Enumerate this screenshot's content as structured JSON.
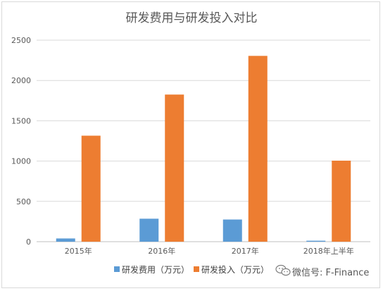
{
  "chart_data": {
    "type": "bar",
    "title": "研发费用与研发投入对比",
    "categories": [
      "2015年",
      "2016年",
      "2017年",
      "2018年上半年"
    ],
    "series": [
      {
        "name": "研发费用（万元）",
        "color": "#5b9bd5",
        "values": [
          40,
          285,
          275,
          12
        ]
      },
      {
        "name": "研发投入（万元）",
        "color": "#ed7d31",
        "values": [
          1315,
          1825,
          2305,
          1005
        ]
      }
    ],
    "ylim": [
      0,
      2500
    ],
    "yticks": [
      0,
      500,
      1000,
      1500,
      2000,
      2500
    ],
    "grid": true,
    "legend": "bottom"
  },
  "watermark": {
    "icon": "wechat-icon",
    "text": "微信号: F-Finance"
  }
}
